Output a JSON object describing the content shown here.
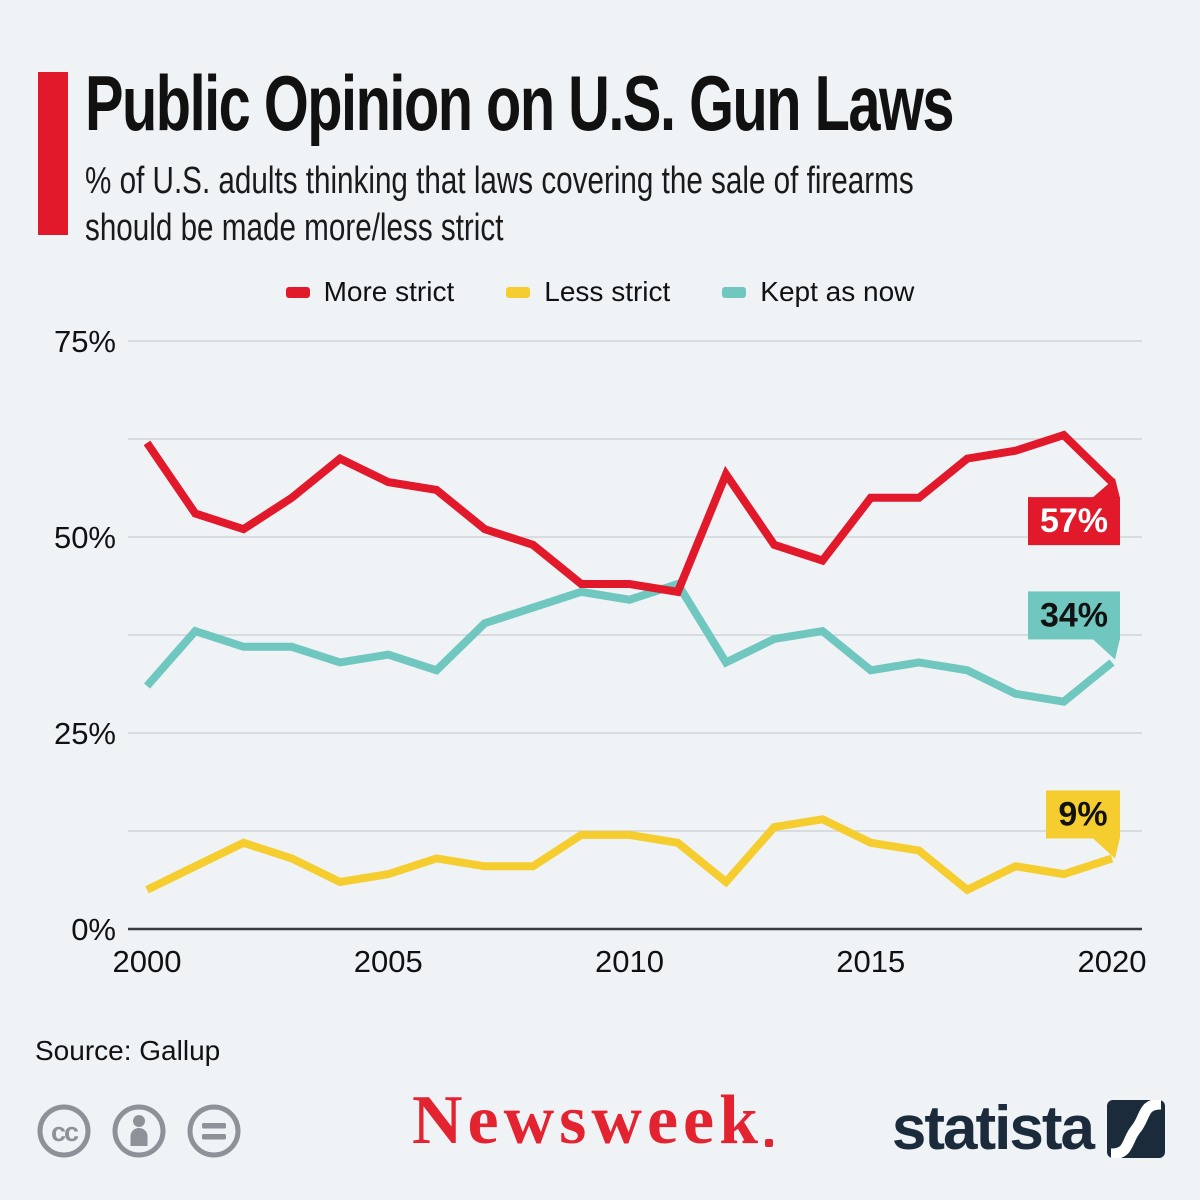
{
  "header": {
    "title": "Public Opinion on U.S. Gun Laws",
    "subtitle_line1": "% of U.S. adults thinking that laws covering the sale of firearms",
    "subtitle_line2": "should be made more/less strict"
  },
  "chart_data": {
    "type": "line",
    "title": "Public Opinion on U.S. Gun Laws",
    "xlabel": "",
    "ylabel": "",
    "x": [
      2000,
      2001,
      2002,
      2003,
      2004,
      2005,
      2006,
      2007,
      2008,
      2009,
      2010,
      2011,
      2012,
      2013,
      2014,
      2015,
      2016,
      2017,
      2018,
      2019,
      2020
    ],
    "x_ticks": [
      2000,
      2005,
      2010,
      2015,
      2020
    ],
    "x_tick_labels": [
      "2000",
      "2005",
      "2010",
      "2015",
      "2020"
    ],
    "ylim": [
      0,
      75
    ],
    "y_ticks": [
      0,
      25,
      50,
      75
    ],
    "y_tick_labels": [
      "0%",
      "25%",
      "50%",
      "75%"
    ],
    "y_gridlines": [
      0,
      12.5,
      25,
      37.5,
      50,
      62.5,
      75
    ],
    "grid": true,
    "legend_position": "top",
    "series": [
      {
        "name": "More strict",
        "color": "#e2192b",
        "values": [
          62,
          53,
          51,
          55,
          60,
          57,
          56,
          51,
          49,
          44,
          44,
          43,
          58,
          49,
          47,
          55,
          55,
          60,
          61,
          63,
          57
        ],
        "end_label": {
          "text": "57%",
          "bg": "#e2192b",
          "fg": "#ffffff"
        }
      },
      {
        "name": "Less strict",
        "color": "#f5cd2f",
        "values": [
          5,
          8,
          11,
          9,
          6,
          7,
          9,
          8,
          8,
          12,
          12,
          11,
          6,
          13,
          14,
          11,
          10,
          5,
          8,
          7,
          9
        ],
        "end_label": {
          "text": "9%",
          "bg": "#f5cd2f",
          "fg": "#121212"
        }
      },
      {
        "name": "Kept as now",
        "color": "#6fc7bf",
        "values": [
          31,
          38,
          36,
          36,
          34,
          35,
          33,
          39,
          41,
          43,
          42,
          44,
          34,
          37,
          38,
          33,
          34,
          33,
          30,
          29,
          34
        ],
        "end_label": {
          "text": "34%",
          "bg": "#6fc7bf",
          "fg": "#121212"
        }
      }
    ]
  },
  "footer": {
    "source": "Source: Gallup",
    "license_icons": [
      "cc-icon",
      "cc-by-person-icon",
      "cc-nd-equals-icon"
    ],
    "newsweek_logo_text": "Newsweek",
    "statista_logo_text": "statista"
  },
  "colors": {
    "background": "#eff3f6",
    "accent_red": "#e2192b",
    "gridline": "#c9ced3",
    "axis_line": "#383d43",
    "newsweek_red": "#e42330",
    "statista_navy": "#1b2b3b",
    "cc_gray": "#8d9298"
  }
}
